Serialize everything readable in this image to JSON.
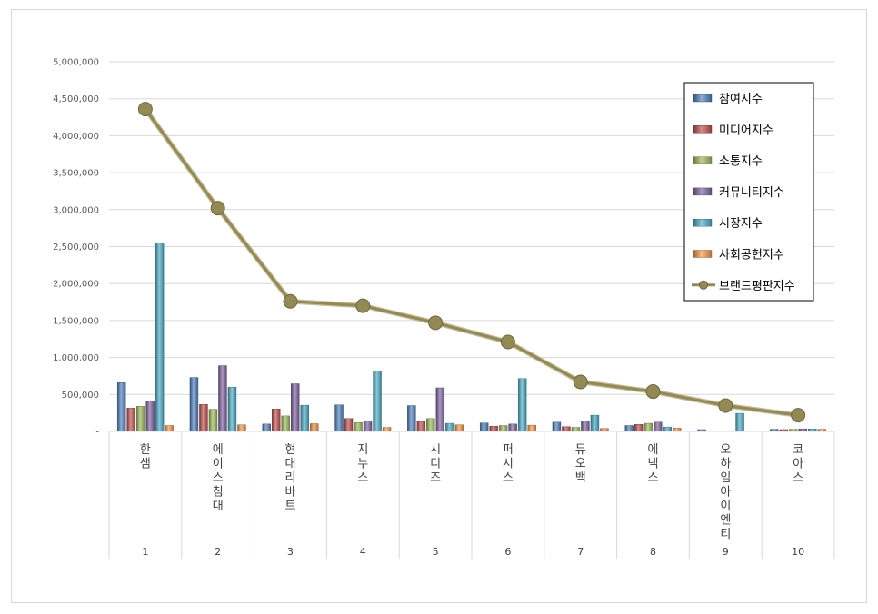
{
  "chart_data": {
    "type": "bar",
    "categories": [
      "한샘",
      "에이스침대",
      "현대리바트",
      "지누스",
      "시디즈",
      "퍼시스",
      "듀오백",
      "에넥스",
      "오하임아이엔티",
      "코아스"
    ],
    "ranks": [
      "1",
      "2",
      "3",
      "4",
      "5",
      "6",
      "7",
      "8",
      "9",
      "10"
    ],
    "ylim": [
      0,
      5000000
    ],
    "yticks": [
      0,
      500000,
      1000000,
      1500000,
      2000000,
      2500000,
      3000000,
      3500000,
      4000000,
      4500000,
      5000000
    ],
    "ytick_labels": [
      "-",
      "500,000",
      "1,000,000",
      "1,500,000",
      "2,000,000",
      "2,500,000",
      "3,000,000",
      "3,500,000",
      "4,000,000",
      "4,500,000",
      "5,000,000"
    ],
    "legend_position": "top-right",
    "grid": true,
    "series": [
      {
        "name": "참여지수",
        "kind": "bar",
        "color": "#4f81bd",
        "values": [
          660000,
          730000,
          100000,
          360000,
          350000,
          115000,
          125000,
          80000,
          25000,
          30000
        ]
      },
      {
        "name": "미디어지수",
        "kind": "bar",
        "color": "#c0504d",
        "values": [
          315000,
          365000,
          305000,
          175000,
          135000,
          70000,
          65000,
          95000,
          10000,
          25000
        ]
      },
      {
        "name": "소통지수",
        "kind": "bar",
        "color": "#9bbb59",
        "values": [
          340000,
          300000,
          210000,
          120000,
          175000,
          80000,
          55000,
          110000,
          10000,
          30000
        ]
      },
      {
        "name": "커뮤니티지수",
        "kind": "bar",
        "color": "#8064a2",
        "values": [
          415000,
          890000,
          645000,
          145000,
          590000,
          100000,
          140000,
          125000,
          10000,
          35000
        ]
      },
      {
        "name": "시장지수",
        "kind": "bar",
        "color": "#4bacc6",
        "values": [
          2550000,
          600000,
          355000,
          815000,
          110000,
          715000,
          220000,
          60000,
          245000,
          35000
        ]
      },
      {
        "name": "사회공헌지수",
        "kind": "bar",
        "color": "#f79646",
        "values": [
          80000,
          90000,
          105000,
          55000,
          90000,
          85000,
          40000,
          45000,
          5000,
          30000
        ]
      },
      {
        "name": "브랜드평판지수",
        "kind": "line",
        "color": "#938953",
        "values": [
          4360000,
          3020000,
          1760000,
          1700000,
          1470000,
          1210000,
          670000,
          540000,
          350000,
          220000
        ]
      }
    ]
  }
}
